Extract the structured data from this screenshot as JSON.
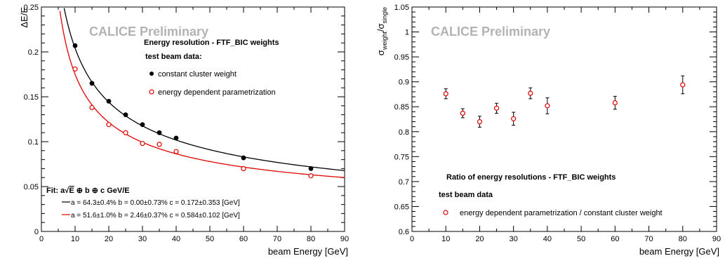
{
  "chart_data": [
    {
      "type": "scatter",
      "watermark": "CALICE Preliminary",
      "title": "Energy resolution - FTF_BIC weights",
      "legend_header": "test beam data:",
      "xlabel": "beam Energy [GeV]",
      "ylabel": "ΔE/E",
      "xlim": [
        0,
        90
      ],
      "ylim": [
        0,
        0.25
      ],
      "xticks": [
        0,
        10,
        20,
        30,
        40,
        50,
        60,
        70,
        80,
        90
      ],
      "yticks": [
        0,
        0.05,
        0.1,
        0.15,
        0.2,
        0.25
      ],
      "ytick_labels": [
        "0",
        "0.05",
        "0.1",
        "0.15",
        "0.2",
        "0.25"
      ],
      "legend_position": "top-right",
      "series": [
        {
          "name": "constant cluster weight",
          "marker": "filled-circle",
          "color": "#000000",
          "x": [
            10,
            15,
            20,
            25,
            30,
            35,
            40,
            60,
            80
          ],
          "y": [
            0.207,
            0.165,
            0.145,
            0.13,
            0.119,
            0.11,
            0.104,
            0.082,
            0.07
          ]
        },
        {
          "name": "energy dependent parametrization",
          "marker": "open-circle",
          "color": "#e00000",
          "x": [
            10,
            15,
            20,
            25,
            30,
            35,
            40,
            60,
            80
          ],
          "y": [
            0.181,
            0.138,
            0.119,
            0.11,
            0.098,
            0.097,
            0.089,
            0.07,
            0.062
          ]
        }
      ],
      "fits": {
        "header_prefix": "Fit: a",
        "header_sqrt": "E",
        "header_suffix": " ⊕ b ⊕ c GeV/E",
        "lines": [
          {
            "label": "a = 64.3±0.4%  b = 0.00±0.73% c = 0.172±0.353 [GeV]",
            "color": "#000000",
            "a": 0.643,
            "b": 0.0,
            "c": 0.172
          },
          {
            "label": "a = 51.6±1.0%  b = 2.46±0.37% c = 0.584±0.102 [GeV]",
            "color": "#e00000",
            "a": 0.516,
            "b": 0.0246,
            "c": 0.584
          }
        ]
      }
    },
    {
      "type": "scatter",
      "watermark": "CALICE Preliminary",
      "title": "Ratio of energy resolutions - FTF_BIC weights",
      "legend_header": "test beam data",
      "xlabel": "beam Energy [GeV]",
      "ylabel_main": "σ",
      "ylabel_sub1": "weight",
      "ylabel_sep": "/σ",
      "ylabel_sub2": "single",
      "xlim": [
        0,
        90
      ],
      "ylim": [
        0.6,
        1.05
      ],
      "xticks": [
        0,
        10,
        20,
        30,
        40,
        50,
        60,
        70,
        80,
        90
      ],
      "yticks": [
        0.6,
        0.65,
        0.7,
        0.75,
        0.8,
        0.85,
        0.9,
        0.95,
        1,
        1.05
      ],
      "ytick_labels": [
        "0.6",
        "0.65",
        "0.7",
        "0.75",
        "0.8",
        "0.85",
        "0.9",
        "0.95",
        "1",
        "1.05"
      ],
      "legend_position": "bottom-right",
      "series": [
        {
          "name": "energy dependent parametrization / constant cluster weight",
          "marker": "open-circle",
          "color": "#e00000",
          "x": [
            10,
            15,
            20,
            25,
            30,
            35,
            40,
            60,
            80
          ],
          "y": [
            0.876,
            0.837,
            0.82,
            0.847,
            0.826,
            0.877,
            0.852,
            0.858,
            0.894
          ],
          "yerr": [
            0.01,
            0.009,
            0.011,
            0.01,
            0.013,
            0.011,
            0.016,
            0.013,
            0.018
          ]
        }
      ]
    }
  ]
}
